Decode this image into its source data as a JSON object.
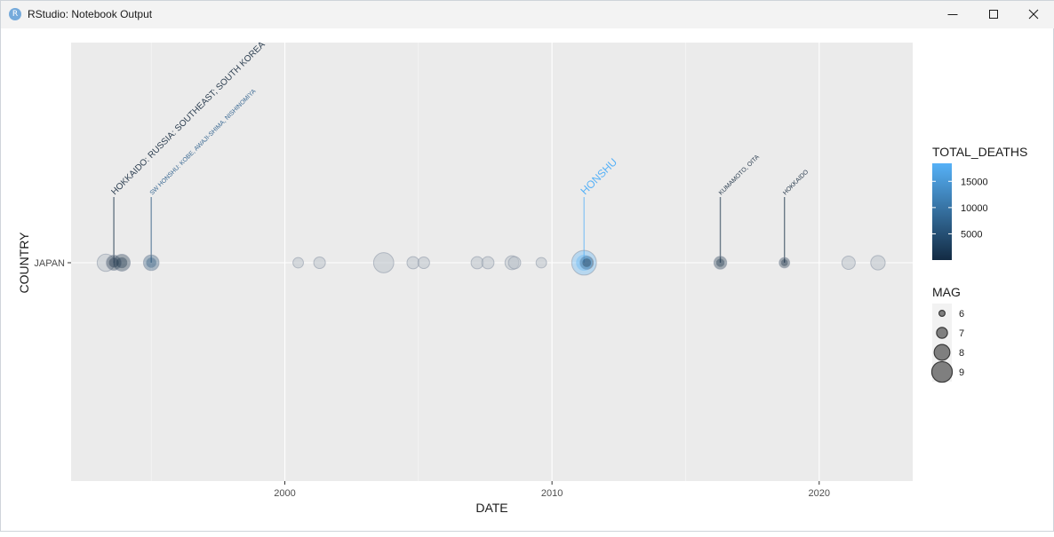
{
  "window": {
    "title": "RStudio: Notebook Output",
    "app_icon_letter": "R",
    "controls": [
      "minimize",
      "maximize",
      "close"
    ]
  },
  "chart_data": {
    "type": "scatter",
    "title": "",
    "xlabel": "DATE",
    "ylabel": "COUNTRY",
    "x_ticks": [
      "2000",
      "2010",
      "2020"
    ],
    "y_ticks": [
      "JAPAN"
    ],
    "xlim": [
      1992.0,
      2023.5
    ],
    "points": [
      {
        "x": 1993.3,
        "y": "JAPAN",
        "mag": 7.8,
        "deaths": null
      },
      {
        "x": 1993.9,
        "y": "JAPAN",
        "mag": 7.7,
        "deaths": 230
      },
      {
        "x": 1993.6,
        "y": "JAPAN",
        "mag": 7.4,
        "deaths": 2
      },
      {
        "x": 1995.0,
        "y": "JAPAN",
        "mag": 7.5,
        "deaths": 5502
      },
      {
        "x": 2000.5,
        "y": "JAPAN",
        "mag": 6.6,
        "deaths": null
      },
      {
        "x": 2001.3,
        "y": "JAPAN",
        "mag": 6.8,
        "deaths": null
      },
      {
        "x": 2003.7,
        "y": "JAPAN",
        "mag": 8.3,
        "deaths": null
      },
      {
        "x": 2004.8,
        "y": "JAPAN",
        "mag": 6.9,
        "deaths": null
      },
      {
        "x": 2005.2,
        "y": "JAPAN",
        "mag": 6.8,
        "deaths": null
      },
      {
        "x": 2007.2,
        "y": "JAPAN",
        "mag": 6.9,
        "deaths": null
      },
      {
        "x": 2007.6,
        "y": "JAPAN",
        "mag": 6.9,
        "deaths": null
      },
      {
        "x": 2008.5,
        "y": "JAPAN",
        "mag": 7.2,
        "deaths": null
      },
      {
        "x": 2008.6,
        "y": "JAPAN",
        "mag": 6.9,
        "deaths": null
      },
      {
        "x": 2009.6,
        "y": "JAPAN",
        "mag": 6.6,
        "deaths": null
      },
      {
        "x": 2011.2,
        "y": "JAPAN",
        "mag": 9.1,
        "deaths": 18428
      },
      {
        "x": 2011.3,
        "y": "JAPAN",
        "mag": 7.1,
        "deaths": 4
      },
      {
        "x": 2016.3,
        "y": "JAPAN",
        "mag": 7.0,
        "deaths": 273
      },
      {
        "x": 2018.7,
        "y": "JAPAN",
        "mag": 6.6,
        "deaths": 41
      },
      {
        "x": 2021.1,
        "y": "JAPAN",
        "mag": 7.1,
        "deaths": null
      },
      {
        "x": 2022.2,
        "y": "JAPAN",
        "mag": 7.3,
        "deaths": null
      }
    ],
    "annotations": [
      {
        "x": 1993.6,
        "text": "HOKKAIDO: RUSSIA: SOUTHEAST; SOUTH KOREA",
        "color": "#2c3e50",
        "size": 10
      },
      {
        "x": 1995.0,
        "text": "SW HONSHU: KOBE, AWAJI-SHIMA, NISHINOMIYA",
        "color": "#3d6b94",
        "size": 7
      },
      {
        "x": 2011.2,
        "text": "HONSHU",
        "color": "#56b1f7",
        "size": 12
      },
      {
        "x": 2016.3,
        "text": "KUMAMOTO, OITA",
        "color": "#2c3e50",
        "size": 7
      },
      {
        "x": 2018.7,
        "text": "HOKKAIDO",
        "color": "#2c3e50",
        "size": 7
      }
    ],
    "legend_deaths": {
      "title": "TOTAL_DEATHS",
      "labels": [
        "15000",
        "10000",
        "5000"
      ],
      "values": [
        15000,
        10000,
        5000
      ],
      "range": [
        0,
        18428
      ],
      "colors": {
        "low": "#132b43",
        "high": "#56b1f7"
      }
    },
    "legend_mag": {
      "title": "MAG",
      "labels": [
        "6",
        "7",
        "8",
        "9"
      ],
      "values": [
        6,
        7,
        8,
        9
      ]
    },
    "grid": true,
    "legend_position": "right",
    "colors": {
      "panel": "#ebebeb",
      "grid": "#ffffff",
      "point_fill": "#b8c3d0",
      "point_fill_na": "#bcc2ca"
    }
  }
}
